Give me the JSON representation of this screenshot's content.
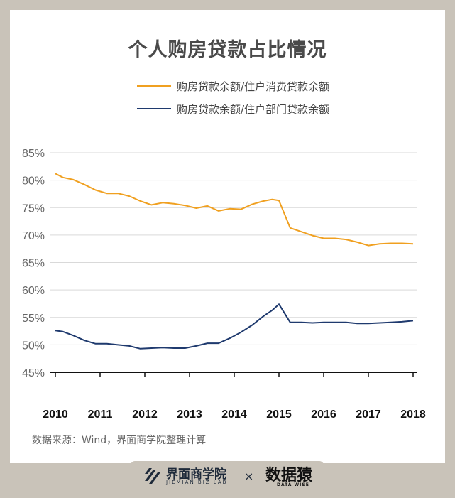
{
  "chart_data": {
    "type": "line",
    "title": "个人购房贷款占比情况",
    "x_tick_labels": [
      "2010",
      "2011",
      "2012",
      "2013",
      "2014",
      "2015",
      "2016",
      "2017",
      "2018"
    ],
    "x_range": [
      2010,
      2018
    ],
    "ylim": [
      45,
      85
    ],
    "y_ticks": [
      45,
      50,
      55,
      60,
      65,
      70,
      75,
      80,
      85
    ],
    "y_tick_labels": [
      "45%",
      "50%",
      "55%",
      "60%",
      "65%",
      "70%",
      "75%",
      "80%",
      "85%"
    ],
    "legend_position": "top-right",
    "grid": true,
    "series": [
      {
        "name": "购房贷款余额/住户消费贷款余额",
        "color": "#f0a020",
        "x": [
          2010.0,
          2010.17,
          2010.4,
          2010.65,
          2010.9,
          2011.15,
          2011.4,
          2011.65,
          2011.9,
          2012.15,
          2012.4,
          2012.65,
          2012.9,
          2013.15,
          2013.4,
          2013.65,
          2013.9,
          2014.15,
          2014.4,
          2014.65,
          2014.85,
          2015.0,
          2015.25,
          2015.5,
          2015.75,
          2016.0,
          2016.25,
          2016.5,
          2016.75,
          2017.0,
          2017.25,
          2017.5,
          2017.75,
          2018.0
        ],
        "values": [
          81.2,
          80.5,
          80.1,
          79.2,
          78.2,
          77.6,
          77.6,
          77.1,
          76.2,
          75.5,
          75.9,
          75.7,
          75.4,
          74.9,
          75.3,
          74.4,
          74.8,
          74.7,
          75.6,
          76.2,
          76.5,
          76.3,
          71.3,
          70.6,
          69.9,
          69.4,
          69.4,
          69.2,
          68.7,
          68.1,
          68.4,
          68.5,
          68.5,
          68.4
        ]
      },
      {
        "name": "购房贷款余额/住户部门贷款余额",
        "color": "#1f3a6e",
        "x": [
          2010.0,
          2010.17,
          2010.4,
          2010.65,
          2010.9,
          2011.15,
          2011.4,
          2011.65,
          2011.9,
          2012.15,
          2012.4,
          2012.65,
          2012.9,
          2013.15,
          2013.4,
          2013.65,
          2013.9,
          2014.15,
          2014.4,
          2014.65,
          2014.85,
          2015.0,
          2015.25,
          2015.5,
          2015.75,
          2016.0,
          2016.25,
          2016.5,
          2016.75,
          2017.0,
          2017.25,
          2017.5,
          2017.75,
          2018.0
        ],
        "values": [
          52.6,
          52.4,
          51.7,
          50.8,
          50.2,
          50.2,
          50.0,
          49.8,
          49.3,
          49.4,
          49.5,
          49.4,
          49.4,
          49.8,
          50.3,
          50.3,
          51.2,
          52.3,
          53.6,
          55.2,
          56.3,
          57.4,
          54.1,
          54.1,
          54.0,
          54.1,
          54.1,
          54.1,
          53.9,
          53.9,
          54.0,
          54.1,
          54.2,
          54.4
        ]
      }
    ]
  },
  "source": "数据来源：Wind，界面商学院整理计算",
  "footer": {
    "brand_name": "界面商学院",
    "brand_sub": "JIEMIAN BIZ LAB",
    "separator": "×",
    "partner_name": "数据猿",
    "partner_sub": "DATA WISE"
  },
  "colors": {
    "background": "#c9c3b9",
    "card": "#ffffff",
    "consumer_series": "#f0a020",
    "household_series": "#1f3a6e"
  }
}
